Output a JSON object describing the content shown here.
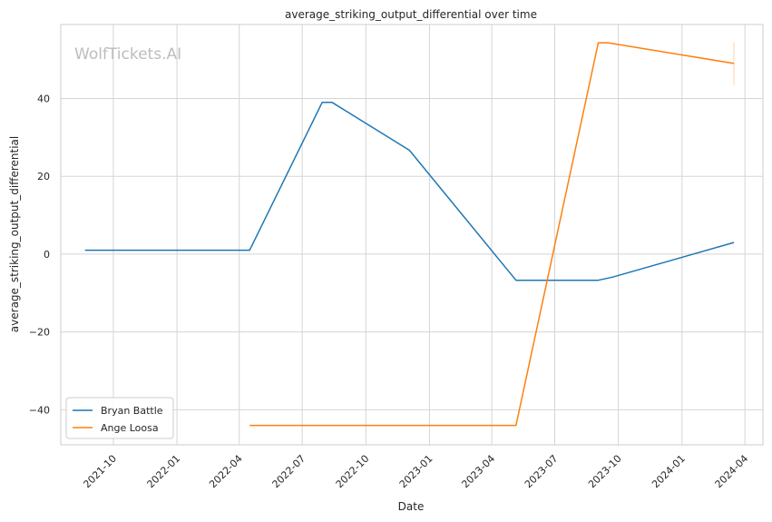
{
  "chart_data": {
    "type": "line",
    "title": "average_striking_output_differential over time",
    "xlabel": "Date",
    "ylabel": "average_striking_output_differential",
    "watermark": "WolfTickets.AI",
    "xlim": [
      "2021-07-17",
      "2024-04-27"
    ],
    "ylim": [
      -49,
      59
    ],
    "x_ticks": [
      "2021-10",
      "2022-01",
      "2022-04",
      "2022-07",
      "2022-10",
      "2023-01",
      "2023-04",
      "2023-07",
      "2023-10",
      "2024-01",
      "2024-04"
    ],
    "y_ticks": [
      -40,
      -20,
      0,
      20,
      40
    ],
    "y_tick_labels": [
      "−40",
      "−20",
      "0",
      "20",
      "40"
    ],
    "grid": true,
    "legend_position": "bottom-left",
    "series": [
      {
        "name": "Bryan Battle",
        "color": "#1f77b4",
        "points": [
          {
            "x": "2021-08-21",
            "y": 1
          },
          {
            "x": "2022-04-16",
            "y": 1
          },
          {
            "x": "2022-07-30",
            "y": 39
          },
          {
            "x": "2022-08-13",
            "y": 39
          },
          {
            "x": "2022-12-03",
            "y": 26.7
          },
          {
            "x": "2023-05-06",
            "y": -6.7
          },
          {
            "x": "2023-09-02",
            "y": -6.7
          },
          {
            "x": "2023-09-23",
            "y": -5.9
          },
          {
            "x": "2024-03-16",
            "y": 3
          }
        ]
      },
      {
        "name": "Ange Loosa",
        "color": "#ff7f0e",
        "points": [
          {
            "x": "2022-04-16",
            "y": -44
          },
          {
            "x": "2023-05-06",
            "y": -44
          },
          {
            "x": "2023-09-02",
            "y": 54.3
          },
          {
            "x": "2023-09-16",
            "y": 54.3
          },
          {
            "x": "2024-03-16",
            "y": 49
          }
        ],
        "error_bar": {
          "x": "2024-03-16",
          "low": 43.5,
          "high": 54.5
        }
      }
    ]
  }
}
